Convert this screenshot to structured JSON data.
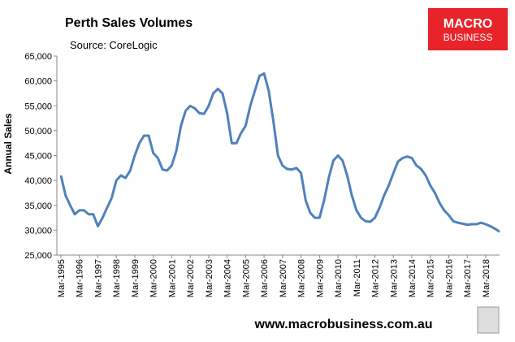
{
  "chart_data": {
    "type": "line",
    "title": "Perth Sales Volumes",
    "subtitle": "Source: CoreLogic",
    "y_label": "Annual Sales",
    "logo": {
      "line1": "MACRO",
      "line2": "BUSINESS"
    },
    "footer": "www.macrobusiness.com.au",
    "categories": [
      "Mar-1995",
      null,
      null,
      null,
      "Mar-1996",
      null,
      null,
      null,
      "Mar-1997",
      null,
      null,
      null,
      "Mar-1998",
      null,
      null,
      null,
      "Mar-1999",
      null,
      null,
      null,
      "Mar-2000",
      null,
      null,
      null,
      "Mar-2001",
      null,
      null,
      null,
      "Mar-2002",
      null,
      null,
      null,
      "Mar-2003",
      null,
      null,
      null,
      "Mar-2004",
      null,
      null,
      null,
      "Mar-2005",
      null,
      null,
      null,
      "Mar-2006",
      null,
      null,
      null,
      "Mar-2007",
      null,
      null,
      null,
      "Mar-2008",
      null,
      null,
      null,
      "Mar-2009",
      null,
      null,
      null,
      "Mar-2010",
      null,
      null,
      null,
      "Mar-2011",
      null,
      null,
      null,
      "Mar-2012",
      null,
      null,
      null,
      "Mar-2013",
      null,
      null,
      null,
      "Mar-2014",
      null,
      null,
      null,
      "Mar-2015",
      null,
      null,
      null,
      "Mar-2016",
      null,
      null,
      null,
      "Mar-2017",
      null,
      null,
      null,
      "Mar-2018",
      null,
      null,
      null
    ],
    "series": [
      {
        "name": "Annual Sales",
        "color": "#4f81bd",
        "values": [
          41000,
          37000,
          35000,
          33200,
          34000,
          34000,
          33200,
          33200,
          30800,
          32500,
          34500,
          36500,
          40000,
          41000,
          40500,
          42000,
          45000,
          47500,
          49000,
          49000,
          45500,
          44500,
          42200,
          42000,
          43000,
          46000,
          51000,
          54000,
          55000,
          54500,
          53500,
          53400,
          55000,
          57500,
          58400,
          57500,
          53500,
          47500,
          47500,
          49500,
          51000,
          55000,
          58000,
          61000,
          61500,
          58000,
          52000,
          45000,
          43000,
          42300,
          42200,
          42500,
          41500,
          36000,
          33500,
          32500,
          32500,
          36000,
          40500,
          44000,
          45000,
          44000,
          41000,
          37000,
          34000,
          32500,
          31800,
          31700,
          32500,
          34500,
          37000,
          39000,
          41500,
          43800,
          44500,
          44800,
          44500,
          43000,
          42300,
          41000,
          39000,
          37500,
          35500,
          34000,
          33000,
          31800,
          31500,
          31300,
          31100,
          31200,
          31200,
          31500,
          31200,
          30800,
          30300,
          29700
        ]
      }
    ],
    "ylim": [
      25000,
      65000
    ],
    "yticks": [
      {
        "value": 25000,
        "label": "25,000"
      },
      {
        "value": 30000,
        "label": "30,000"
      },
      {
        "value": 35000,
        "label": "35,000"
      },
      {
        "value": 40000,
        "label": "40,000"
      },
      {
        "value": 45000,
        "label": "45,000"
      },
      {
        "value": 50000,
        "label": "50,000"
      },
      {
        "value": 55000,
        "label": "55,000"
      },
      {
        "value": 60000,
        "label": "60,000"
      },
      {
        "value": 65000,
        "label": "65,000"
      }
    ],
    "grid": false
  }
}
